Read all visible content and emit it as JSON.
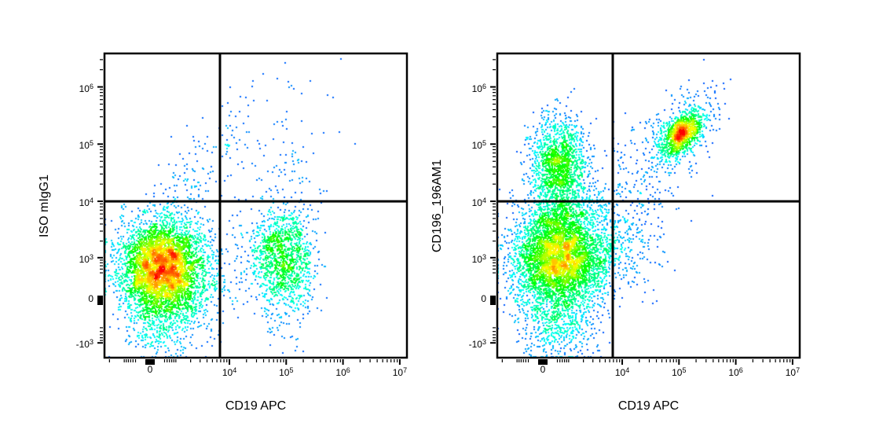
{
  "figure": {
    "background": "#ffffff",
    "axis_color": "#000000",
    "gate_color": "#000000",
    "density_colormap": [
      "#0000ff",
      "#00ffff",
      "#00ff00",
      "#ffff00",
      "#ff8000",
      "#ff0000"
    ]
  },
  "chart_data": [
    {
      "type": "scatter",
      "subtype": "flow-cytometry-density",
      "title": "",
      "xlabel": "CD19 APC",
      "ylabel": "ISO mIgG1",
      "x_scale": "logicle",
      "y_scale": "logicle",
      "x_range": [
        -2500,
        13000000
      ],
      "y_range": [
        -1900,
        3800000
      ],
      "grid": false,
      "legend": "none",
      "x_ticks": [
        {
          "v": 0,
          "base": "0"
        },
        {
          "v": 10000,
          "base": "10",
          "exp": "4"
        },
        {
          "v": 100000,
          "base": "10",
          "exp": "5"
        },
        {
          "v": 1000000,
          "base": "10",
          "exp": "6"
        },
        {
          "v": 10000000,
          "base": "10",
          "exp": "7"
        }
      ],
      "y_ticks": [
        {
          "v": 1000000,
          "base": "10",
          "exp": "6"
        },
        {
          "v": 100000,
          "base": "10",
          "exp": "5"
        },
        {
          "v": 10000,
          "base": "10",
          "exp": "4"
        },
        {
          "v": 1000,
          "base": "10",
          "exp": "3"
        },
        {
          "v": 0,
          "base": "0"
        },
        {
          "v": -1000,
          "base": "-10",
          "exp": "3"
        }
      ],
      "quadrant_gate": {
        "x": 6800,
        "y": 10000
      },
      "populations": [
        {
          "name": "negative-main",
          "cx": 350,
          "cy": 700,
          "sx": 0.38,
          "sy": 0.42,
          "rho": 0,
          "n": 4200
        },
        {
          "name": "negative-low-tail",
          "cx": 350,
          "cy": -250,
          "sx": 0.33,
          "sy": 0.33,
          "rho": 0,
          "n": 450
        },
        {
          "name": "negative-right-shoulder",
          "cx": 1200,
          "cy": 400,
          "sx": 0.42,
          "sy": 0.45,
          "rho": 0,
          "n": 450
        },
        {
          "name": "cd19-pos",
          "cx": 87000,
          "cy": 1100,
          "sx": 0.26,
          "sy": 0.4,
          "rho": 0,
          "n": 1050
        },
        {
          "name": "cd19-pos-low-tail",
          "cx": 87000,
          "cy": 120,
          "sx": 0.28,
          "sy": 0.42,
          "rho": 0,
          "n": 200
        },
        {
          "name": "bridge",
          "cx": 25000,
          "cy": 1300,
          "sx": 0.5,
          "sy": 0.45,
          "rho": 0,
          "n": 170
        },
        {
          "name": "upper-left-spray",
          "cx": 3000,
          "cy": 30000,
          "sx": 0.42,
          "sy": 0.5,
          "rho": 0.6,
          "n": 120
        },
        {
          "name": "diagonal-high-spray",
          "cx": 15000,
          "cy": 150000,
          "sx": 0.45,
          "sy": 0.5,
          "rho": 0.6,
          "n": 40
        },
        {
          "name": "upper-right-sparse",
          "cx": 90000,
          "cy": 30000,
          "sx": 0.4,
          "sy": 0.55,
          "rho": 0,
          "n": 90
        },
        {
          "name": "top-outliers",
          "cx": 150000,
          "cy": 800000,
          "sx": 0.5,
          "sy": 0.45,
          "rho": 0.3,
          "n": 12
        }
      ]
    },
    {
      "type": "scatter",
      "subtype": "flow-cytometry-density",
      "title": "",
      "xlabel": "CD19 APC",
      "ylabel": "CD196_196AM1",
      "x_scale": "logicle",
      "y_scale": "logicle",
      "x_range": [
        -2500,
        13000000
      ],
      "y_range": [
        -1900,
        3800000
      ],
      "grid": false,
      "legend": "none",
      "x_ticks": [
        {
          "v": 0,
          "base": "0"
        },
        {
          "v": 10000,
          "base": "10",
          "exp": "4"
        },
        {
          "v": 100000,
          "base": "10",
          "exp": "5"
        },
        {
          "v": 1000000,
          "base": "10",
          "exp": "6"
        },
        {
          "v": 10000000,
          "base": "10",
          "exp": "7"
        }
      ],
      "y_ticks": [
        {
          "v": 1000000,
          "base": "10",
          "exp": "6"
        },
        {
          "v": 100000,
          "base": "10",
          "exp": "5"
        },
        {
          "v": 10000,
          "base": "10",
          "exp": "4"
        },
        {
          "v": 1000,
          "base": "10",
          "exp": "3"
        },
        {
          "v": 0,
          "base": "0"
        },
        {
          "v": -1000,
          "base": "-10",
          "exp": "3"
        }
      ],
      "quadrant_gate": {
        "x": 6800,
        "y": 10000
      },
      "populations": [
        {
          "name": "negative-main",
          "cx": 500,
          "cy": 1000,
          "sx": 0.4,
          "sy": 0.44,
          "rho": 0,
          "n": 4300
        },
        {
          "name": "negative-low-tail",
          "cx": 450,
          "cy": -350,
          "sx": 0.33,
          "sy": 0.35,
          "rho": 0,
          "n": 550
        },
        {
          "name": "cd196-pos-cd19-neg",
          "cx": 500,
          "cy": 50000,
          "sx": 0.24,
          "sy": 0.4,
          "rho": 0,
          "n": 1350
        },
        {
          "name": "cd196-bridge",
          "cx": 600,
          "cy": 9000,
          "sx": 0.3,
          "sy": 0.4,
          "rho": 0,
          "n": 500
        },
        {
          "name": "negative-right-shoulder",
          "cx": 2800,
          "cy": 1500,
          "sx": 0.4,
          "sy": 0.45,
          "rho": 0,
          "n": 420
        },
        {
          "name": "cd19-cd196-double-pos-core",
          "cx": 110000,
          "cy": 160000,
          "sx": 0.18,
          "sy": 0.2,
          "rho": 0.5,
          "n": 1050
        },
        {
          "name": "cd19-cd196-double-pos-halo",
          "cx": 110000,
          "cy": 160000,
          "sx": 0.36,
          "sy": 0.4,
          "rho": 0.5,
          "n": 260
        },
        {
          "name": "upper-bridge-spray",
          "cx": 20000,
          "cy": 50000,
          "sx": 0.5,
          "sy": 0.5,
          "rho": 0.4,
          "n": 160
        },
        {
          "name": "lower-right-spray",
          "cx": 11000,
          "cy": 2500,
          "sx": 0.42,
          "sy": 0.5,
          "rho": 0,
          "n": 230
        },
        {
          "name": "top-outliers",
          "cx": 120000,
          "cy": 700000,
          "sx": 0.3,
          "sy": 0.3,
          "rho": 0,
          "n": 6
        }
      ]
    }
  ]
}
